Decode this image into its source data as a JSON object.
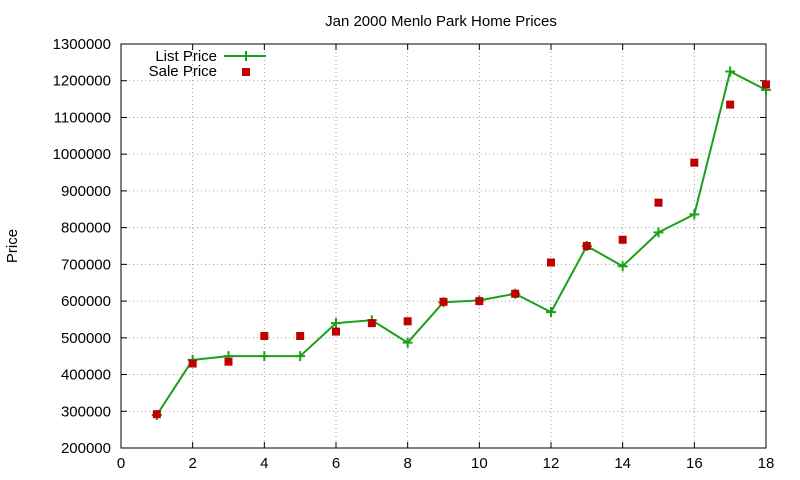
{
  "chart_data": {
    "type": "line",
    "title": "Jan 2000 Menlo Park Home Prices",
    "xlabel": "",
    "ylabel": "Price",
    "xlim": [
      0,
      18
    ],
    "ylim": [
      200000,
      1300000
    ],
    "x_ticks": [
      0,
      2,
      4,
      6,
      8,
      10,
      12,
      14,
      16,
      18
    ],
    "y_ticks": [
      200000,
      300000,
      400000,
      500000,
      600000,
      700000,
      800000,
      900000,
      1000000,
      1100000,
      1200000,
      1300000
    ],
    "grid": true,
    "legend_position": "top-left",
    "series": [
      {
        "name": "List Price",
        "style": "line+cross",
        "color": "#1aa01a",
        "x": [
          1,
          2,
          3,
          4,
          5,
          6,
          7,
          8,
          9,
          10,
          11,
          12,
          13,
          14,
          15,
          16,
          17,
          18
        ],
        "values": [
          290000,
          440000,
          450000,
          450000,
          450000,
          540000,
          548000,
          487000,
          597000,
          602000,
          620000,
          570000,
          750000,
          695000,
          787000,
          836000,
          1225000,
          1175000
        ]
      },
      {
        "name": "Sale Price",
        "style": "square",
        "color": "#c00000",
        "x": [
          1,
          2,
          3,
          4,
          5,
          6,
          7,
          8,
          9,
          10,
          11,
          12,
          13,
          14,
          15,
          16,
          17,
          18
        ],
        "values": [
          292000,
          430000,
          435000,
          505000,
          505000,
          517000,
          540000,
          545000,
          598000,
          600000,
          620000,
          705000,
          750000,
          767000,
          868000,
          977000,
          1135000,
          1190000
        ]
      }
    ]
  }
}
